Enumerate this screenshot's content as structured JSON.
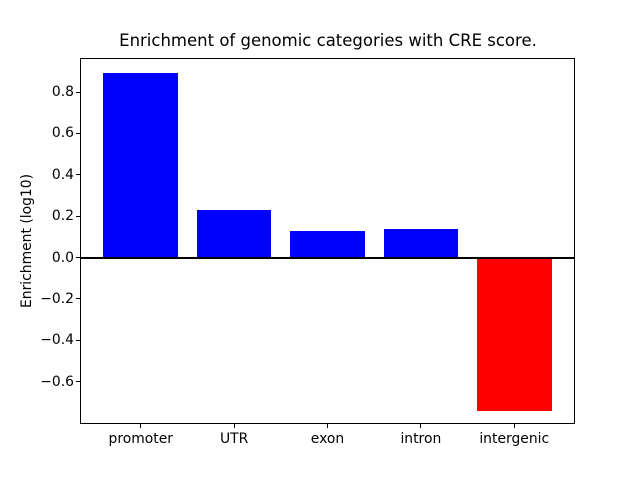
{
  "chart_data": {
    "type": "bar",
    "title": "Enrichment of genomic categories with CRE score.",
    "xlabel": "",
    "ylabel": "Enrichment (log10)",
    "categories": [
      "promoter",
      "UTR",
      "exon",
      "intron",
      "intergenic"
    ],
    "values": [
      0.89,
      0.23,
      0.13,
      0.14,
      -0.74
    ],
    "bar_colors": [
      "#0000ff",
      "#0000ff",
      "#0000ff",
      "#0000ff",
      "#ff0000"
    ],
    "yticks": [
      0.8,
      0.6,
      0.4,
      0.2,
      0.0,
      -0.2,
      -0.4,
      -0.6
    ],
    "ytick_labels": [
      "0.8",
      "0.6",
      "0.4",
      "0.2",
      "0.0",
      "−0.2",
      "−0.4",
      "−0.6"
    ],
    "ylim": [
      -0.8,
      0.96
    ],
    "grid": false,
    "legend": false,
    "zero_line": true,
    "background_color": "#ffffff",
    "axis_color": "#000000"
  }
}
